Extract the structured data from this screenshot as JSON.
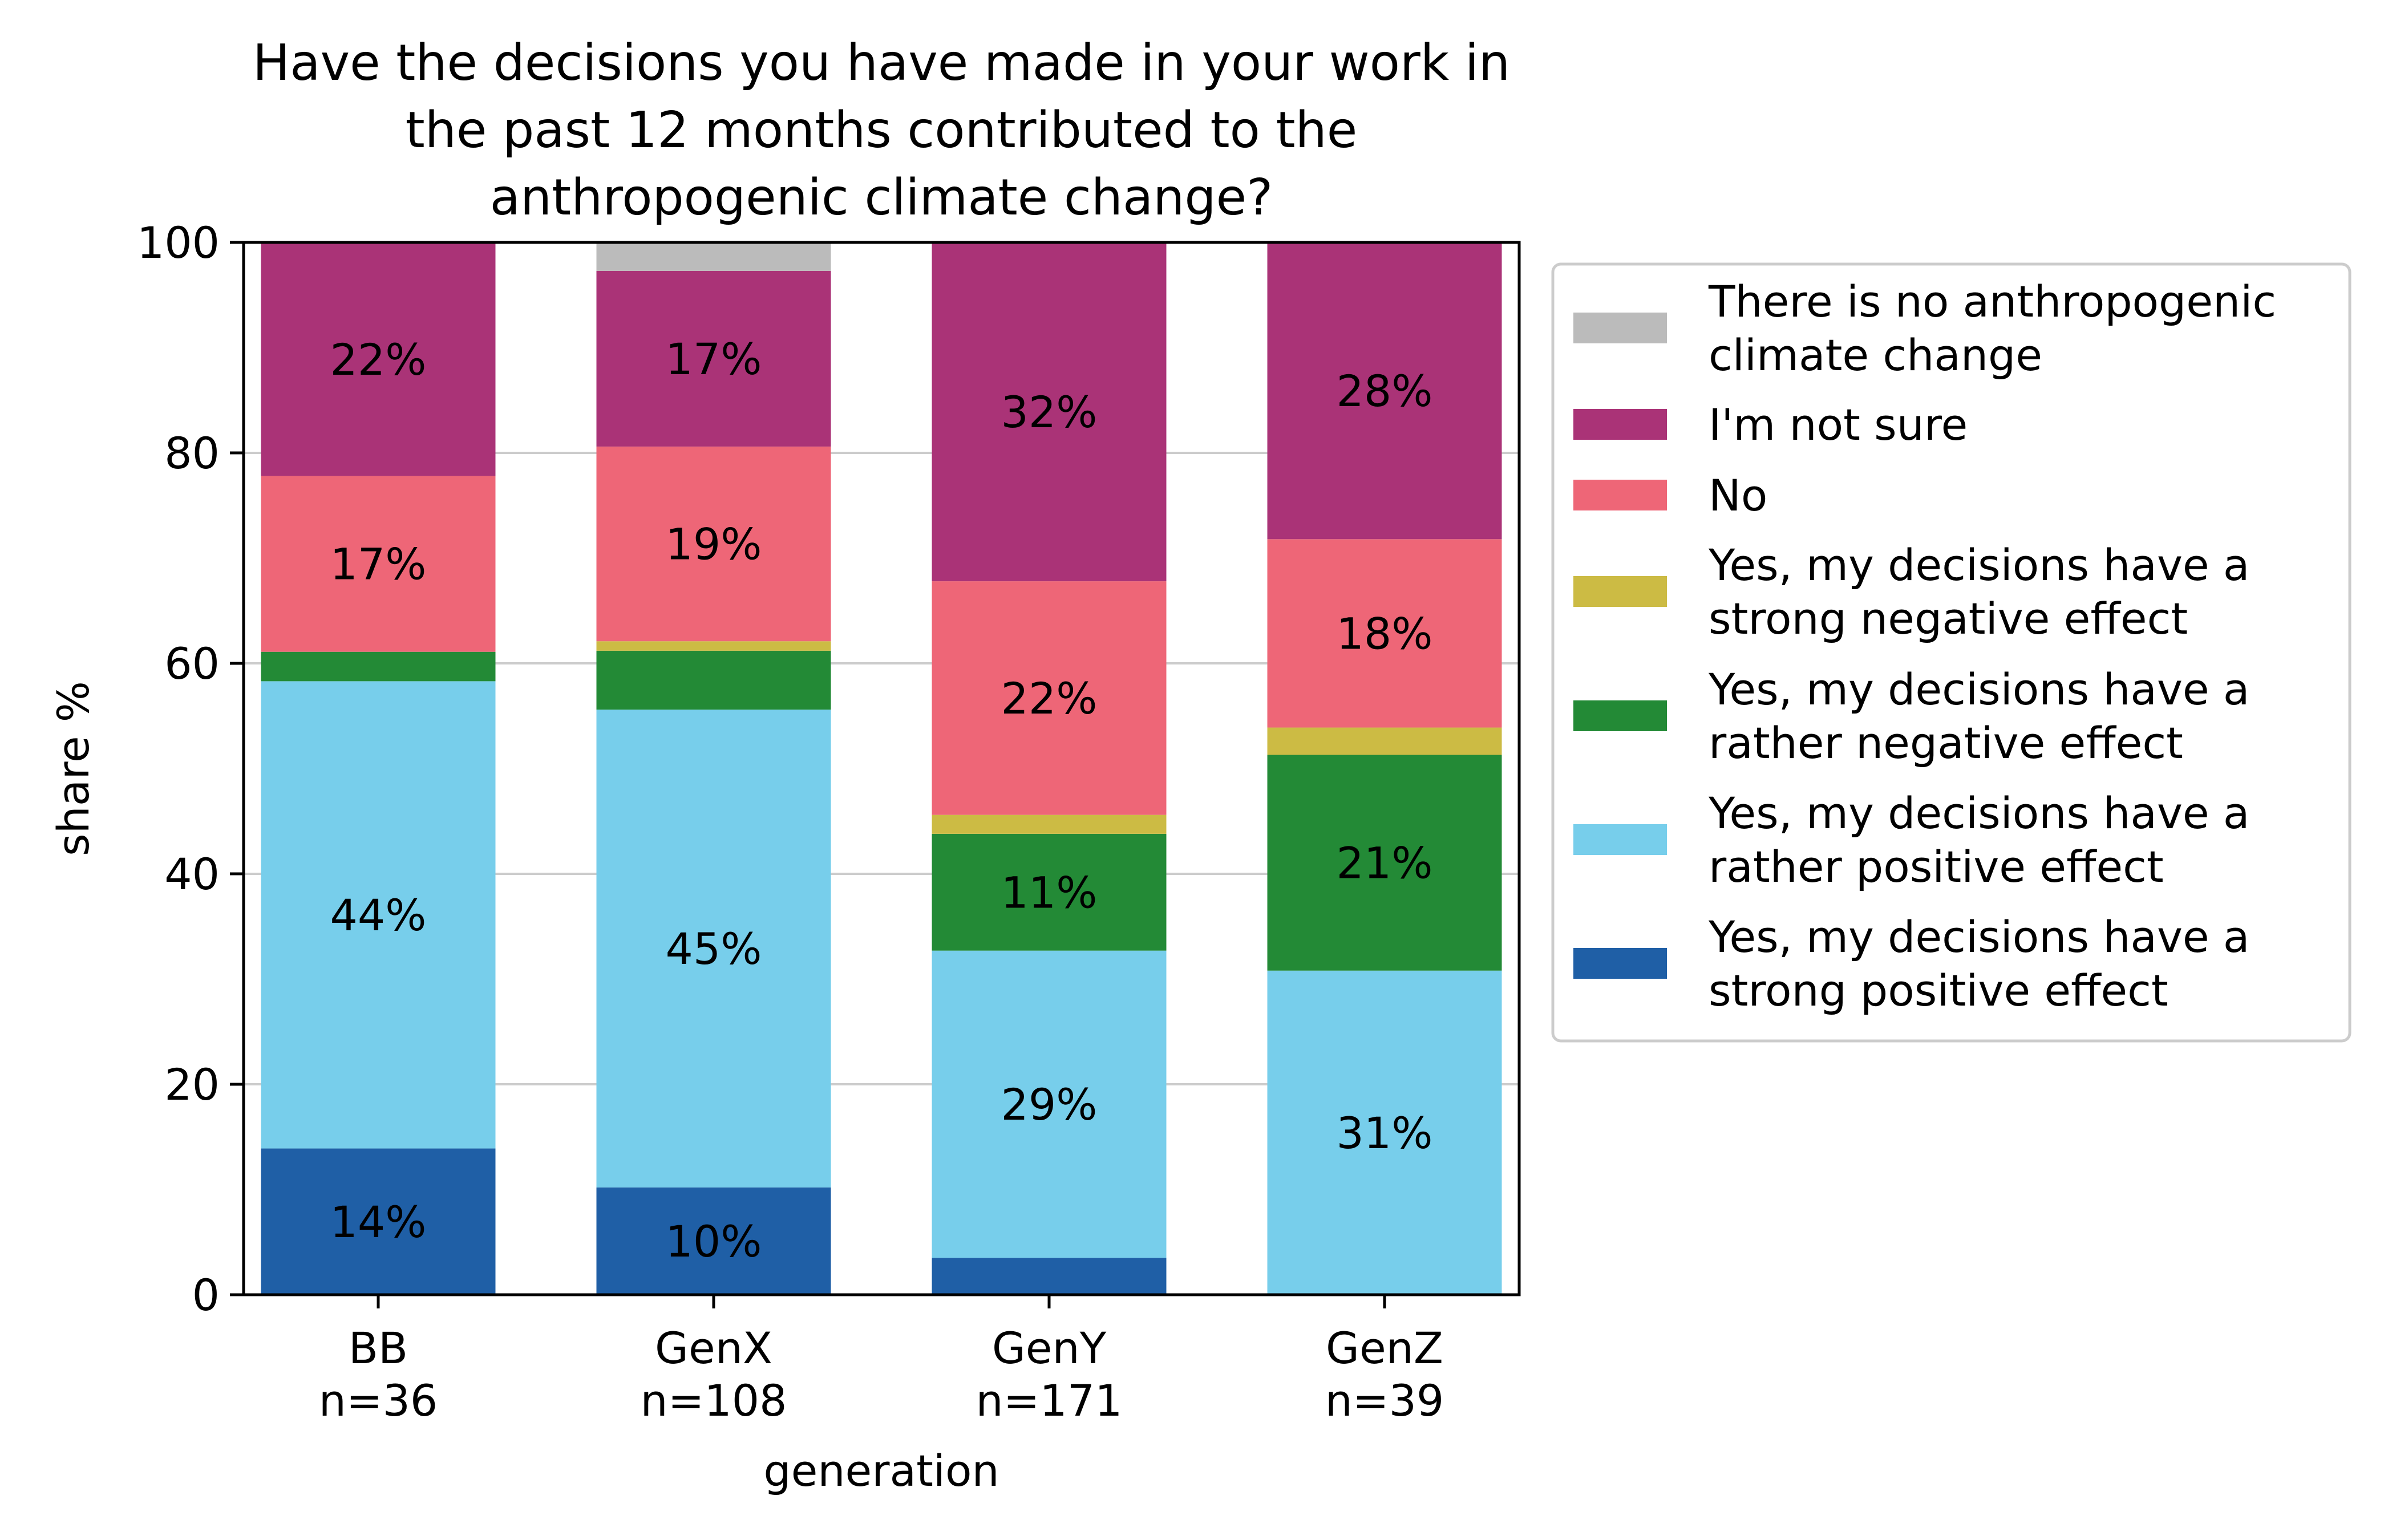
{
  "chart_data": {
    "type": "bar",
    "stacked": true,
    "title": "Have the decisions you have made in your work in the past 12 months contributed to the anthropogenic climate change?",
    "title_lines": [
      "Have the decisions you have made in your work in",
      "the past 12 months contributed to the",
      "anthropogenic climate change?"
    ],
    "xlabel": "generation",
    "ylabel": "share %",
    "ylim": [
      0,
      100
    ],
    "yticks": [
      0,
      20,
      40,
      60,
      80,
      100
    ],
    "grid": "horizontal",
    "legend_position": "outside-right",
    "categories": [
      "BB",
      "GenX",
      "GenY",
      "GenZ"
    ],
    "category_sublabels": [
      "n=36",
      "n=108",
      "n=171",
      "n=39"
    ],
    "series": [
      {
        "name": "Yes, my decisions have a strong positive effect",
        "legend_lines": [
          "Yes, my decisions have a",
          "strong positive effect"
        ],
        "color": "#1f5fa6",
        "values": [
          13.9,
          10.2,
          3.5,
          0.0
        ],
        "labels": [
          "14%",
          "10%",
          "",
          ""
        ]
      },
      {
        "name": "Yes, my decisions have a rather positive effect",
        "legend_lines": [
          "Yes, my decisions have a",
          "rather positive effect"
        ],
        "color": "#77ceeb",
        "values": [
          44.4,
          45.4,
          29.2,
          30.8
        ],
        "labels": [
          "44%",
          "45%",
          "29%",
          "31%"
        ]
      },
      {
        "name": "Yes, my decisions have a rather negative effect",
        "legend_lines": [
          "Yes, my decisions have a",
          "rather negative effect"
        ],
        "color": "#238a36",
        "values": [
          2.8,
          5.6,
          11.1,
          20.5
        ],
        "labels": [
          "",
          "",
          "11%",
          "21%"
        ]
      },
      {
        "name": "Yes, my decisions have a strong negative effect",
        "legend_lines": [
          "Yes, my decisions have a",
          "strong negative effect"
        ],
        "color": "#ccbb44",
        "values": [
          0.0,
          0.9,
          1.8,
          2.6
        ],
        "labels": [
          "",
          "",
          "",
          ""
        ]
      },
      {
        "name": "No",
        "legend_lines": [
          "No"
        ],
        "color": "#ee6677",
        "values": [
          16.7,
          18.5,
          22.2,
          17.9
        ],
        "labels": [
          "17%",
          "19%",
          "22%",
          "18%"
        ]
      },
      {
        "name": "I'm not sure",
        "legend_lines": [
          "I'm not sure"
        ],
        "color": "#aa3377",
        "values": [
          22.2,
          16.7,
          32.2,
          28.2
        ],
        "labels": [
          "22%",
          "17%",
          "32%",
          "28%"
        ]
      },
      {
        "name": "There is no anthropogenic climate change",
        "legend_lines": [
          "There is no anthropogenic",
          "climate change"
        ],
        "color": "#bbbbbb",
        "values": [
          0.0,
          2.7,
          0.0,
          0.0
        ],
        "labels": [
          "",
          "",
          "",
          ""
        ]
      }
    ],
    "legend_order": [
      6,
      5,
      4,
      3,
      2,
      1,
      0
    ]
  }
}
